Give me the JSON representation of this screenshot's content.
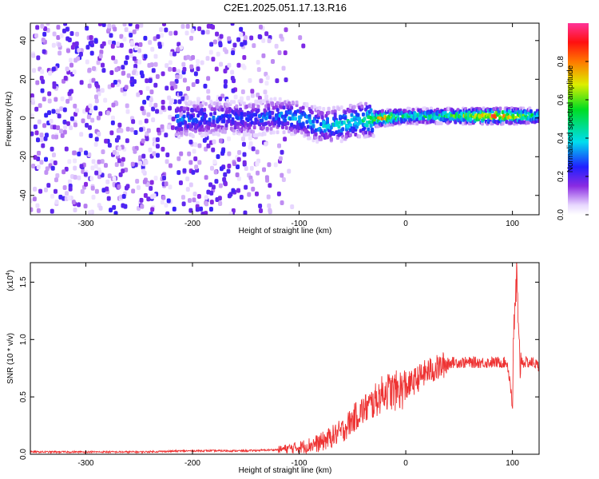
{
  "title": "C2E1.2025.051.17.13.R16",
  "chart_data": [
    {
      "type": "heatmap",
      "xlabel": "Height of straight line (km)",
      "ylabel": "Frequency (Hz)",
      "xlim": [
        -352,
        125
      ],
      "ylim": [
        -50,
        49
      ],
      "xticks": [
        -300,
        -200,
        -100,
        0,
        100
      ],
      "yticks": [
        -40,
        -20,
        0,
        20,
        40
      ],
      "colorbar": {
        "label": "Normalized spectral amplitude",
        "range": [
          0,
          1
        ],
        "ticks": [
          0.0,
          0.2,
          0.4,
          0.6,
          0.8
        ],
        "tick_labels": [
          "0.0",
          "0.2",
          "0.4",
          "0.6",
          "0.8"
        ]
      },
      "ridge": [
        {
          "x": -215,
          "y": -1,
          "v": 0.35
        },
        {
          "x": -180,
          "y": 0,
          "v": 0.3
        },
        {
          "x": -140,
          "y": 0,
          "v": 0.3
        },
        {
          "x": -120,
          "y": 1,
          "v": 0.35
        },
        {
          "x": -100,
          "y": 0,
          "v": 0.4
        },
        {
          "x": -80,
          "y": -4,
          "v": 0.4
        },
        {
          "x": -60,
          "y": -3,
          "v": 0.45
        },
        {
          "x": -40,
          "y": -1,
          "v": 0.5
        },
        {
          "x": -20,
          "y": 0,
          "v": 0.85
        },
        {
          "x": 0,
          "y": 1,
          "v": 0.5
        },
        {
          "x": 40,
          "y": 1,
          "v": 0.55
        },
        {
          "x": 85,
          "y": 1,
          "v": 0.95
        },
        {
          "x": 125,
          "y": 1,
          "v": 0.5
        }
      ]
    },
    {
      "type": "line",
      "xlabel": "Height of straight line (km)",
      "ylabel": "SNR (10 * v/v)",
      "scale_label": "(x10",
      "scale_exp": "4",
      "scale_close": ")",
      "xlim": [
        -352,
        125
      ],
      "ylim": [
        0.0,
        1.67
      ],
      "xticks": [
        -300,
        -200,
        -100,
        0,
        100
      ],
      "yticks": [
        0.0,
        0.5,
        1.0,
        1.5
      ],
      "ytick_labels": [
        "0.0",
        "0.5",
        "1.0",
        "1.5"
      ],
      "series": [
        {
          "color": "#ee3333",
          "x": [
            -352,
            -300,
            -250,
            -200,
            -150,
            -120,
            -100,
            -80,
            -60,
            -45,
            -30,
            -20,
            -10,
            0,
            10,
            20,
            30,
            40,
            60,
            80,
            95,
            100,
            102,
            104,
            106,
            110,
            120,
            125
          ],
          "y": [
            0.02,
            0.02,
            0.02,
            0.03,
            0.03,
            0.04,
            0.06,
            0.1,
            0.2,
            0.35,
            0.45,
            0.55,
            0.55,
            0.58,
            0.65,
            0.72,
            0.75,
            0.8,
            0.8,
            0.8,
            0.8,
            0.5,
            1.2,
            1.55,
            0.85,
            0.8,
            0.8,
            0.76
          ]
        }
      ]
    }
  ]
}
